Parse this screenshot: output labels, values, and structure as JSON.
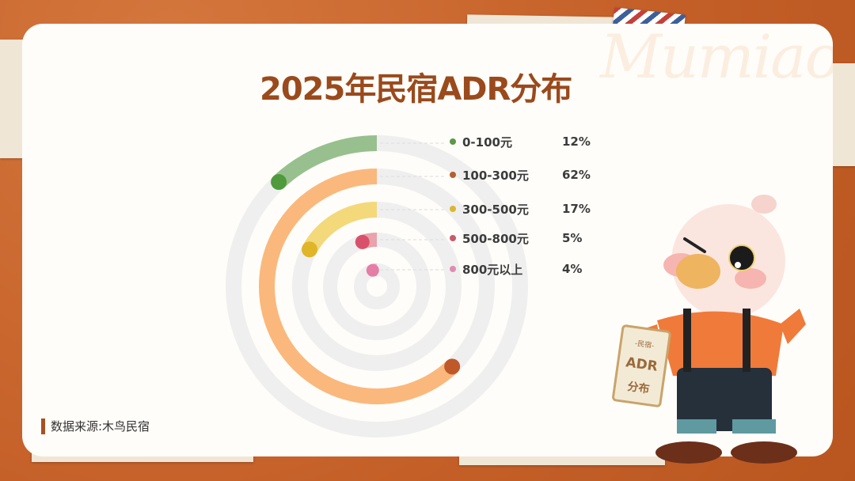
{
  "title": "2025年民宿ADR分布",
  "watermark": "Mumiao",
  "source": "数据来源:木鸟民宿",
  "mascot": {
    "sign_top": "-民宿-",
    "sign_mid": "ADR",
    "sign_bottom": "分布"
  },
  "chart_data": {
    "type": "radial-bar",
    "title": "2025年民宿ADR分布",
    "unit": "%",
    "max": 100,
    "categories": [
      "0-100元",
      "100-300元",
      "300-500元",
      "500-800元",
      "800元以上"
    ],
    "values": [
      12,
      62,
      17,
      5,
      4
    ],
    "labels": [
      "12%",
      "62%",
      "17%",
      "5%",
      "4%"
    ],
    "colors": [
      "#97c08e",
      "#fbb87c",
      "#f3d97a",
      "#e8a3ab",
      "#f3bcd0"
    ],
    "end_colors": [
      "#4e9a3c",
      "#c0592a",
      "#e0b52a",
      "#d9506a",
      "#e47ea6"
    ],
    "legend_colors": [
      "#5a9a45",
      "#b4602f",
      "#d9b732",
      "#c85a6a",
      "#e08cb0"
    ],
    "track_color": "#efefef",
    "legend": "right"
  }
}
